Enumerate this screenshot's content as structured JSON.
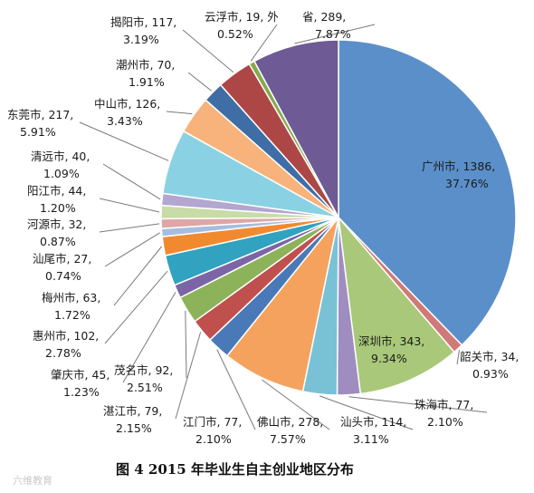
{
  "chart_data": {
    "type": "pie",
    "title": "",
    "slices": [
      {
        "name": "广州市",
        "value": 1386,
        "percent": "37.76%",
        "color": "#5b8fc9"
      },
      {
        "name": "韶关市",
        "value": 34,
        "percent": "0.93%",
        "color": "#d07a78"
      },
      {
        "name": "深圳市",
        "value": 343,
        "percent": "9.34%",
        "color": "#a9c87a"
      },
      {
        "name": "珠海市",
        "value": 77,
        "percent": "2.10%",
        "color": "#9f8dbf"
      },
      {
        "name": "汕头市",
        "value": 114,
        "percent": "3.11%",
        "color": "#79c2d6"
      },
      {
        "name": "佛山市",
        "value": 278,
        "percent": "7.57%",
        "color": "#f6a25f"
      },
      {
        "name": "江门市",
        "value": 77,
        "percent": "2.10%",
        "color": "#4a79b8"
      },
      {
        "name": "湛江市",
        "value": 79,
        "percent": "2.15%",
        "color": "#c0504d"
      },
      {
        "name": "茂名市",
        "value": 92,
        "percent": "2.51%",
        "color": "#8db35a"
      },
      {
        "name": "肇庆市",
        "value": 45,
        "percent": "1.23%",
        "color": "#7b65a6"
      },
      {
        "name": "惠州市",
        "value": 102,
        "percent": "2.78%",
        "color": "#31a2c0"
      },
      {
        "name": "梅州市",
        "value": 63,
        "percent": "1.72%",
        "color": "#f18a2f"
      },
      {
        "name": "汕尾市",
        "value": 27,
        "percent": "0.74%",
        "color": "#a5bde0"
      },
      {
        "name": "河源市",
        "value": 32,
        "percent": "0.87%",
        "color": "#dea6a5"
      },
      {
        "name": "阳江市",
        "value": 44,
        "percent": "1.20%",
        "color": "#c7dca6"
      },
      {
        "name": "清远市",
        "value": 40,
        "percent": "1.09%",
        "color": "#b3a6cf"
      },
      {
        "name": "东莞市",
        "value": 217,
        "percent": "5.91%",
        "color": "#8ad2e3"
      },
      {
        "name": "中山市",
        "value": 126,
        "percent": "3.43%",
        "color": "#f7b37b"
      },
      {
        "name": "潮州市",
        "value": 70,
        "percent": "1.91%",
        "color": "#3f6da5"
      },
      {
        "name": "揭阳市",
        "value": 117,
        "percent": "3.19%",
        "color": "#ad4745"
      },
      {
        "name": "云浮市",
        "value": 19,
        "percent": "0.52%",
        "color": "#87a84e"
      },
      {
        "name": "外省",
        "value": 289,
        "percent": "7.87%",
        "color": "#6e5a94"
      }
    ]
  },
  "labels": [
    {
      "line1": "广州市, 1386,",
      "line2": "37.76%"
    },
    {
      "line1": "韶关市, 34,",
      "line2": "0.93%"
    },
    {
      "line1": "深圳市, 343,",
      "line2": "9.34%"
    },
    {
      "line1": "珠海市, 77,",
      "line2": "2.10%"
    },
    {
      "line1": "汕头市, 114,",
      "line2": "3.11%"
    },
    {
      "line1": "佛山市, 278,",
      "line2": "7.57%"
    },
    {
      "line1": "江门市, 77,",
      "line2": "2.10%"
    },
    {
      "line1": "湛江市, 79,",
      "line2": "2.15%"
    },
    {
      "line1": "茂名市, 92,",
      "line2": "2.51%"
    },
    {
      "line1": "肇庆市, 45,",
      "line2": "1.23%"
    },
    {
      "line1": "惠州市, 102,",
      "line2": "2.78%"
    },
    {
      "line1": "梅州市, 63,",
      "line2": "1.72%"
    },
    {
      "line1": "汕尾市, 27,",
      "line2": "0.74%"
    },
    {
      "line1": "河源市, 32,",
      "line2": "0.87%"
    },
    {
      "line1": "阳江市, 44,",
      "line2": "1.20%"
    },
    {
      "line1": "清远市, 40,",
      "line2": "1.09%"
    },
    {
      "line1": "东莞市, 217,",
      "line2": "5.91%"
    },
    {
      "line1": "中山市, 126,",
      "line2": "3.43%"
    },
    {
      "line1": "潮州市, 70,",
      "line2": "1.91%"
    },
    {
      "line1": "揭阳市, 117,",
      "line2": "3.19%"
    },
    {
      "line1": "云浮市, 19, 外",
      "line2": "0.52%"
    },
    {
      "line1": "省, 289,",
      "line2": "7.87%"
    }
  ],
  "caption": "图 4   2015 年毕业生自主创业地区分布",
  "watermark": "六维教育"
}
